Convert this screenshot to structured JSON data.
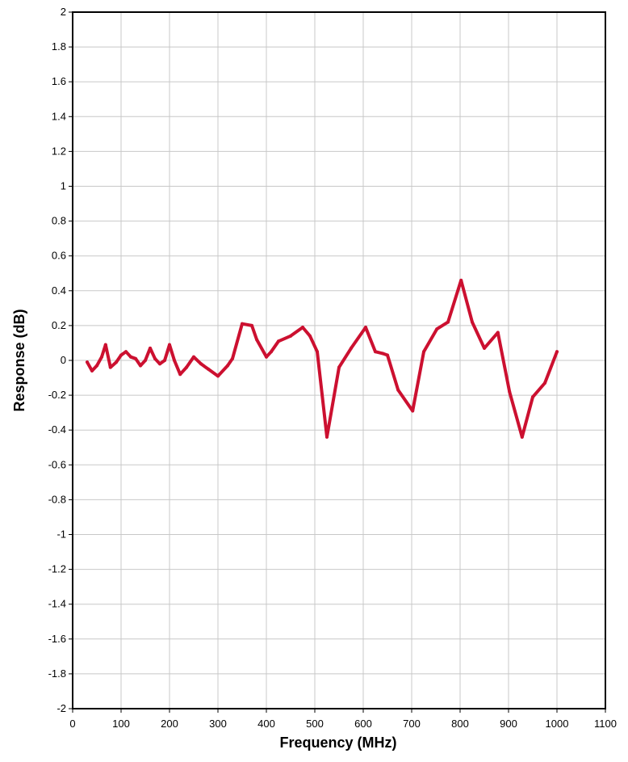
{
  "chart_data": {
    "type": "line",
    "title": "",
    "xlabel": "Frequency (MHz)",
    "ylabel": "Response (dB)",
    "xlim": [
      0,
      1100
    ],
    "ylim": [
      -2,
      2
    ],
    "x_ticks": [
      0,
      100,
      200,
      300,
      400,
      500,
      600,
      700,
      800,
      900,
      1000,
      1100
    ],
    "y_ticks": [
      -2,
      -1.8,
      -1.6,
      -1.4,
      -1.2,
      -1,
      -0.8,
      -0.6,
      -0.4,
      -0.2,
      0,
      0.2,
      0.4,
      0.6,
      0.8,
      1,
      1.2,
      1.4,
      1.6,
      1.8,
      2
    ],
    "grid": true,
    "legend": "none",
    "series": [
      {
        "color": "#cc1030",
        "x": [
          30,
          40,
          50,
          60,
          68,
          78,
          90,
          100,
          110,
          120,
          130,
          140,
          150,
          160,
          170,
          180,
          190,
          200,
          210,
          222,
          235,
          250,
          265,
          280,
          300,
          320,
          330,
          350,
          370,
          380,
          400,
          410,
          425,
          450,
          475,
          490,
          505,
          525,
          550,
          575,
          605,
          625,
          640,
          650,
          672,
          702,
          725,
          752,
          775,
          802,
          825,
          850,
          878,
          902,
          928,
          950,
          975,
          1000
        ],
        "y": [
          -0.01,
          -0.06,
          -0.03,
          0.02,
          0.09,
          -0.04,
          -0.01,
          0.03,
          0.05,
          0.02,
          0.01,
          -0.03,
          0.0,
          0.07,
          0.01,
          -0.02,
          0.0,
          0.09,
          0.0,
          -0.08,
          -0.04,
          0.02,
          -0.02,
          -0.05,
          -0.09,
          -0.03,
          0.01,
          0.21,
          0.2,
          0.12,
          0.02,
          0.05,
          0.11,
          0.14,
          0.19,
          0.14,
          0.05,
          -0.44,
          -0.04,
          0.07,
          0.19,
          0.05,
          0.04,
          0.03,
          -0.17,
          -0.29,
          0.05,
          0.18,
          0.22,
          0.46,
          0.22,
          0.07,
          0.16,
          -0.18,
          -0.44,
          -0.21,
          -0.13,
          0.05
        ]
      }
    ]
  }
}
